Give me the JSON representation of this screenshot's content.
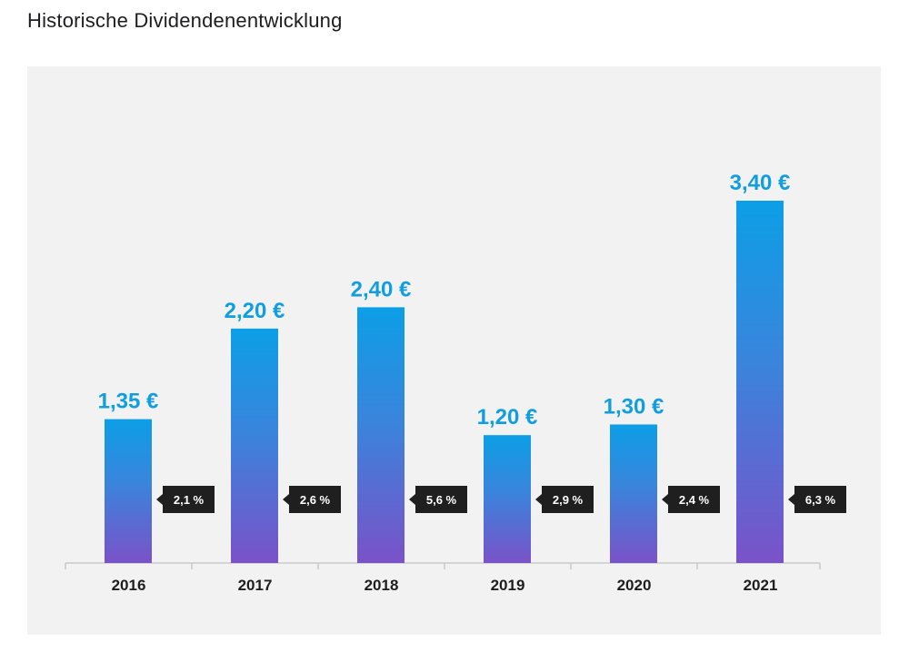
{
  "page": {
    "title": "Historische Dividendenentwicklung"
  },
  "chart_data": {
    "type": "bar",
    "title": "Historische Dividendenentwicklung",
    "categories": [
      "2016",
      "2017",
      "2018",
      "2019",
      "2020",
      "2021"
    ],
    "values": [
      1.35,
      2.2,
      2.4,
      1.2,
      1.3,
      3.4
    ],
    "value_labels": [
      "1,35 €",
      "2,20 €",
      "2,40 €",
      "1,20 €",
      "1,30 €",
      "3,40 €"
    ],
    "yields": [
      "2,1 %",
      "2,6 %",
      "5,6 %",
      "2,9 %",
      "2,4 %",
      "6,3 %"
    ],
    "unit": "€",
    "ylim": [
      0,
      3.4
    ],
    "grid": false,
    "legend": "none",
    "colors": {
      "bar_top": "#0c9fe6",
      "bar_bottom": "#7a52c8",
      "value_label": "#109ee0",
      "yield_badge": "#1f1f1f",
      "panel_background": "#f2f2f3"
    }
  }
}
